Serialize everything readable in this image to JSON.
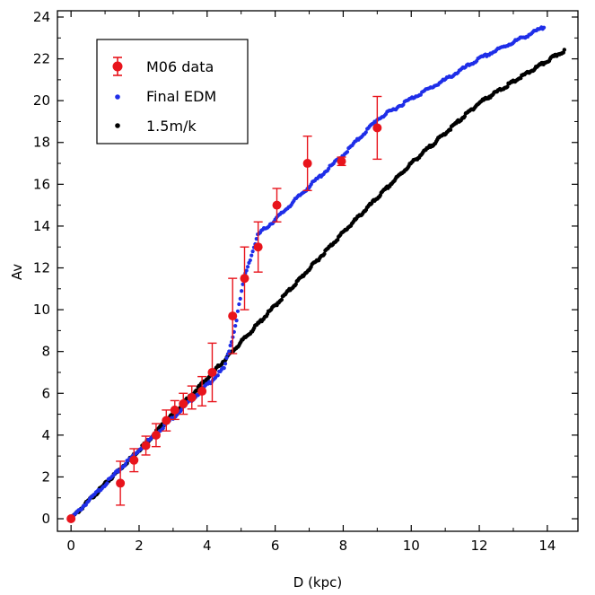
{
  "chart_data": {
    "type": "scatter",
    "title": "",
    "xlabel": "D (kpc)",
    "ylabel": "Av",
    "xlim": [
      -0.4,
      14.9
    ],
    "ylim": [
      -0.6,
      24.3
    ],
    "grid": false,
    "legend_position": "top-left",
    "x_ticks": [
      0,
      2,
      4,
      6,
      8,
      10,
      12,
      14
    ],
    "y_ticks": [
      0,
      2,
      4,
      6,
      8,
      10,
      12,
      14,
      16,
      18,
      20,
      22,
      24
    ],
    "x_tick_labels": [
      "0",
      "2",
      "4",
      "6",
      "8",
      "10",
      "12",
      "14"
    ],
    "y_tick_labels": [
      "0",
      "2",
      "4",
      "6",
      "8",
      "10",
      "12",
      "14",
      "16",
      "18",
      "20",
      "22",
      "24"
    ],
    "series": [
      {
        "name": "M06 data",
        "kind": "errorbar",
        "color": "#e8141c",
        "points": [
          {
            "x": 0.0,
            "y": 0.0,
            "err": 0.0
          },
          {
            "x": 1.45,
            "y": 1.7,
            "err": 1.05
          },
          {
            "x": 1.85,
            "y": 2.8,
            "err": 0.55
          },
          {
            "x": 2.2,
            "y": 3.5,
            "err": 0.45
          },
          {
            "x": 2.5,
            "y": 4.0,
            "err": 0.55
          },
          {
            "x": 2.8,
            "y": 4.7,
            "err": 0.5
          },
          {
            "x": 3.05,
            "y": 5.2,
            "err": 0.45
          },
          {
            "x": 3.3,
            "y": 5.5,
            "err": 0.5
          },
          {
            "x": 3.55,
            "y": 5.8,
            "err": 0.55
          },
          {
            "x": 3.85,
            "y": 6.1,
            "err": 0.7
          },
          {
            "x": 4.15,
            "y": 7.0,
            "err": 1.4
          },
          {
            "x": 4.75,
            "y": 9.7,
            "err": 1.8
          },
          {
            "x": 5.1,
            "y": 11.5,
            "err": 1.5
          },
          {
            "x": 5.5,
            "y": 13.0,
            "err": 1.2
          },
          {
            "x": 6.05,
            "y": 15.0,
            "err": 0.8
          },
          {
            "x": 6.95,
            "y": 17.0,
            "err": 1.3
          },
          {
            "x": 7.95,
            "y": 17.1,
            "err": 0.2
          },
          {
            "x": 9.0,
            "y": 18.7,
            "err": 1.5
          }
        ]
      },
      {
        "name": "Final EDM",
        "kind": "dense-dots",
        "color": "#1f2ee8",
        "curve": [
          [
            0,
            0
          ],
          [
            2,
            3.3
          ],
          [
            4.0,
            6.4
          ],
          [
            4.5,
            7.2
          ],
          [
            4.8,
            9.0
          ],
          [
            5.1,
            11.6
          ],
          [
            5.5,
            13.6
          ],
          [
            6.0,
            14.3
          ],
          [
            7.0,
            15.9
          ],
          [
            8.0,
            17.4
          ],
          [
            9.0,
            19.1
          ],
          [
            10.0,
            20.1
          ],
          [
            11.0,
            21.0
          ],
          [
            12.0,
            22.0
          ],
          [
            13.0,
            22.8
          ],
          [
            13.9,
            23.5
          ]
        ],
        "x_range": [
          0,
          13.9
        ]
      },
      {
        "name": "1.5m/k",
        "kind": "dense-dots",
        "color": "#000000",
        "curve": [
          [
            0,
            0
          ],
          [
            2,
            3.3
          ],
          [
            4,
            6.7
          ],
          [
            6,
            10.2
          ],
          [
            8,
            13.7
          ],
          [
            10,
            17.0
          ],
          [
            12,
            19.9
          ],
          [
            14.5,
            22.4
          ]
        ],
        "x_range": [
          0,
          14.5
        ]
      }
    ],
    "legend": [
      "M06 data",
      "Final EDM",
      "1.5m/k"
    ]
  }
}
